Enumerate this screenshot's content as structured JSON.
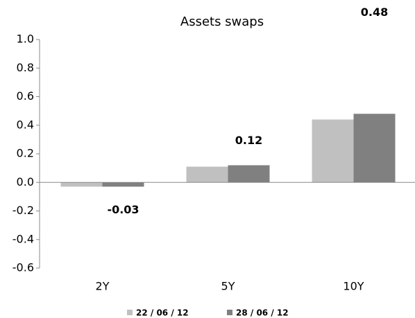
{
  "chart_data": {
    "type": "bar",
    "title": "Assets swaps",
    "categories": [
      "2Y",
      "5Y",
      "10Y"
    ],
    "series": [
      {
        "name": "22 / 06 / 12",
        "color": "#c0c0c0",
        "values": [
          -0.03,
          0.11,
          0.44
        ]
      },
      {
        "name": "28 / 06 / 12",
        "color": "#808080",
        "values": [
          -0.03,
          0.12,
          0.48
        ]
      }
    ],
    "data_labels": {
      "series": 1,
      "values": [
        -0.03,
        0.12,
        0.48
      ]
    },
    "ylim": [
      -0.6,
      1.0
    ],
    "yticks": [
      {
        "value": -0.6,
        "label": "-0.6"
      },
      -0.4,
      -0.2,
      {
        "value": 0,
        "label": "0.0"
      },
      0.2,
      0.4,
      0.6,
      0.8,
      {
        "value": 1,
        "label": "1.0"
      }
    ],
    "grid": false,
    "legend": "bottom"
  }
}
